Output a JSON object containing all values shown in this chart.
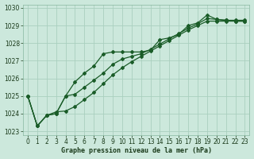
{
  "title": "Graphe pression niveau de la mer (hPa)",
  "background_color": "#cce8dc",
  "plot_bg_color": "#cce8dc",
  "grid_color": "#aacfbf",
  "line_color": "#1a5c28",
  "ylim": [
    1022.8,
    1030.2
  ],
  "xlim": [
    -0.5,
    23.5
  ],
  "ytick_vals": [
    1023,
    1024,
    1025,
    1026,
    1027,
    1028,
    1029,
    1030
  ],
  "xtick_vals": [
    0,
    1,
    2,
    3,
    4,
    5,
    6,
    7,
    8,
    9,
    10,
    11,
    12,
    13,
    14,
    15,
    16,
    17,
    18,
    19,
    20,
    21,
    22,
    23
  ],
  "series1": [
    1025.0,
    1023.3,
    1023.9,
    1024.0,
    1025.0,
    1025.8,
    1026.3,
    1026.7,
    1027.4,
    1027.5,
    1027.5,
    1027.5,
    1027.5,
    1027.6,
    1028.2,
    1028.3,
    1028.5,
    1029.0,
    1029.15,
    1029.6,
    1029.35,
    1029.3,
    1029.3,
    1029.3
  ],
  "series2": [
    1025.0,
    1023.3,
    1023.9,
    1024.0,
    1025.0,
    1025.1,
    1025.5,
    1025.9,
    1026.3,
    1026.8,
    1027.1,
    1027.25,
    1027.4,
    1027.65,
    1027.95,
    1028.25,
    1028.55,
    1028.85,
    1029.1,
    1029.4,
    1029.35,
    1029.3,
    1029.25,
    1029.25
  ],
  "series3": [
    1025.0,
    1023.3,
    1023.9,
    1024.1,
    1024.15,
    1024.4,
    1024.8,
    1025.2,
    1025.7,
    1026.2,
    1026.6,
    1026.95,
    1027.25,
    1027.55,
    1027.85,
    1028.15,
    1028.45,
    1028.75,
    1029.0,
    1029.25,
    1029.25,
    1029.25,
    1029.25,
    1029.25
  ],
  "marker": "D",
  "markersize": 2.0,
  "linewidth": 0.9,
  "tick_fontsize": 5.5,
  "xlabel_fontsize": 6.0
}
